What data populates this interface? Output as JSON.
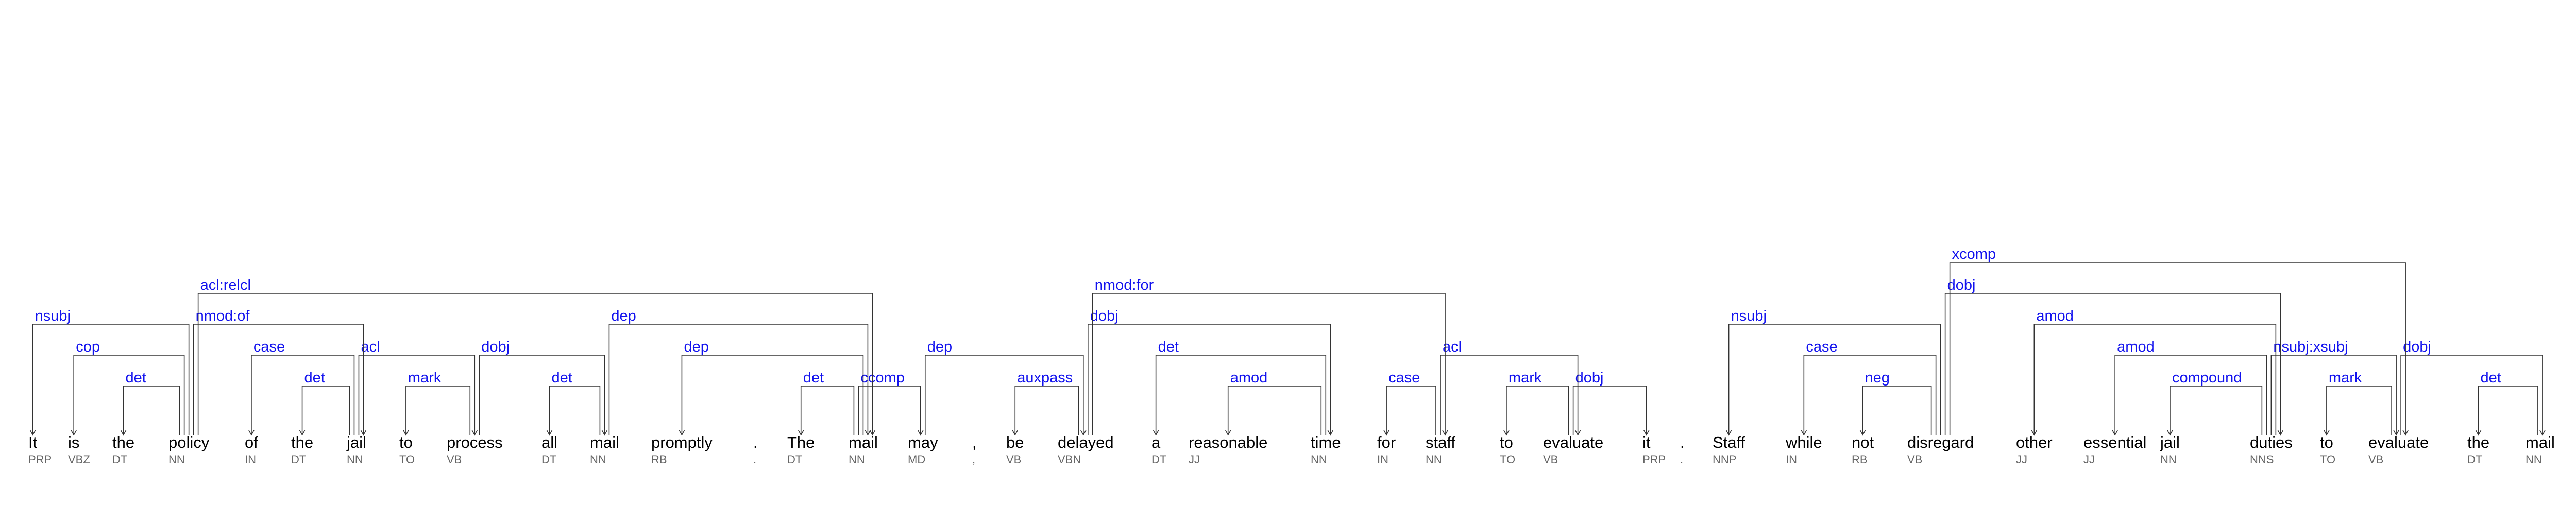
{
  "colors": {
    "label": "#1212ee",
    "word": "#000000",
    "tag": "#666666",
    "line": "#333333"
  },
  "tokens": [
    {
      "text": "It",
      "tag": "PRP"
    },
    {
      "text": "is",
      "tag": "VBZ"
    },
    {
      "text": "the",
      "tag": "DT"
    },
    {
      "text": "policy",
      "tag": "NN"
    },
    {
      "text": "of",
      "tag": "IN"
    },
    {
      "text": "the",
      "tag": "DT"
    },
    {
      "text": "jail",
      "tag": "NN"
    },
    {
      "text": "to",
      "tag": "TO"
    },
    {
      "text": "process",
      "tag": "VB"
    },
    {
      "text": "all",
      "tag": "DT"
    },
    {
      "text": "mail",
      "tag": "NN"
    },
    {
      "text": "promptly",
      "tag": "RB"
    },
    {
      "text": ".",
      "tag": "."
    },
    {
      "text": "The",
      "tag": "DT"
    },
    {
      "text": "mail",
      "tag": "NN"
    },
    {
      "text": "may",
      "tag": "MD"
    },
    {
      "text": ",",
      "tag": ","
    },
    {
      "text": "be",
      "tag": "VB"
    },
    {
      "text": "delayed",
      "tag": "VBN"
    },
    {
      "text": "a",
      "tag": "DT"
    },
    {
      "text": "reasonable",
      "tag": "JJ"
    },
    {
      "text": "time",
      "tag": "NN"
    },
    {
      "text": "for",
      "tag": "IN"
    },
    {
      "text": "staff",
      "tag": "NN"
    },
    {
      "text": "to",
      "tag": "TO"
    },
    {
      "text": "evaluate",
      "tag": "VB"
    },
    {
      "text": "it",
      "tag": "PRP"
    },
    {
      "text": ".",
      "tag": "."
    },
    {
      "text": "Staff",
      "tag": "NNP"
    },
    {
      "text": "while",
      "tag": "IN"
    },
    {
      "text": "not",
      "tag": "RB"
    },
    {
      "text": "disregard",
      "tag": "VB"
    },
    {
      "text": "other",
      "tag": "JJ"
    },
    {
      "text": "essential",
      "tag": "JJ"
    },
    {
      "text": "jail",
      "tag": "NN"
    },
    {
      "text": "duties",
      "tag": "NNS"
    },
    {
      "text": "to",
      "tag": "TO"
    },
    {
      "text": "evaluate",
      "tag": "VB"
    },
    {
      "text": "the",
      "tag": "DT"
    },
    {
      "text": "mail",
      "tag": "NN"
    },
    {
      "text": ".",
      "tag": ""
    }
  ],
  "arcs": [
    {
      "label": "nsubj",
      "from": 3,
      "to": 0
    },
    {
      "label": "cop",
      "from": 3,
      "to": 1
    },
    {
      "label": "det",
      "from": 3,
      "to": 2
    },
    {
      "label": "acl:relcl",
      "from": 3,
      "to": 14
    },
    {
      "label": "nmod:of",
      "from": 3,
      "to": 6
    },
    {
      "label": "case",
      "from": 6,
      "to": 4
    },
    {
      "label": "det",
      "from": 6,
      "to": 5
    },
    {
      "label": "acl",
      "from": 6,
      "to": 8
    },
    {
      "label": "mark",
      "from": 8,
      "to": 7
    },
    {
      "label": "dobj",
      "from": 8,
      "to": 10
    },
    {
      "label": "det",
      "from": 10,
      "to": 9
    },
    {
      "label": "dep",
      "from": 10,
      "to": 14
    },
    {
      "label": "dep",
      "from": 14,
      "to": 11
    },
    {
      "label": "det",
      "from": 14,
      "to": 13
    },
    {
      "label": "ccomp",
      "from": 14,
      "to": 15
    },
    {
      "label": "dep",
      "from": 15,
      "to": 18
    },
    {
      "label": "nmod:for",
      "from": 18,
      "to": 23
    },
    {
      "label": "auxpass",
      "from": 18,
      "to": 17
    },
    {
      "label": "dobj",
      "from": 18,
      "to": 21
    },
    {
      "label": "det",
      "from": 21,
      "to": 19
    },
    {
      "label": "amod",
      "from": 21,
      "to": 20
    },
    {
      "label": "case",
      "from": 23,
      "to": 22
    },
    {
      "label": "acl",
      "from": 23,
      "to": 25
    },
    {
      "label": "mark",
      "from": 25,
      "to": 24
    },
    {
      "label": "dobj",
      "from": 25,
      "to": 26
    },
    {
      "label": "nsubj",
      "from": 31,
      "to": 28
    },
    {
      "label": "case",
      "from": 31,
      "to": 29
    },
    {
      "label": "neg",
      "from": 31,
      "to": 30
    },
    {
      "label": "dobj",
      "from": 31,
      "to": 35
    },
    {
      "label": "xcomp",
      "from": 31,
      "to": 37
    },
    {
      "label": "amod",
      "from": 35,
      "to": 32
    },
    {
      "label": "amod",
      "from": 35,
      "to": 33
    },
    {
      "label": "compound",
      "from": 35,
      "to": 34
    },
    {
      "label": "nsubj:xsubj",
      "from": 35,
      "to": 37
    },
    {
      "label": "mark",
      "from": 37,
      "to": 36
    },
    {
      "label": "dobj",
      "from": 37,
      "to": 39
    },
    {
      "label": "det",
      "from": 39,
      "to": 38
    }
  ]
}
